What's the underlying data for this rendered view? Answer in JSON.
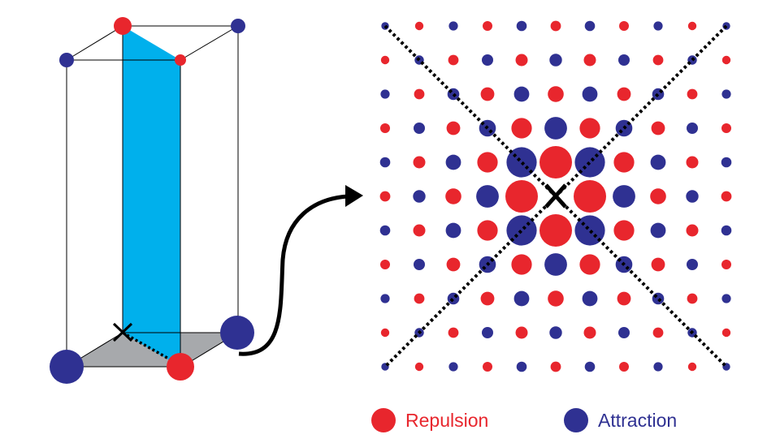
{
  "colors": {
    "repulsion": "#e8262d",
    "attraction": "#2f3192",
    "plane": "#00b0ec",
    "base": "#a7a9ac",
    "ink": "#000000"
  },
  "legend": {
    "repulsion_label": "Repulsion",
    "attraction_label": "Attraction"
  },
  "lattice_pattern": {
    "grid_size": 11,
    "center_index": 5,
    "parity_rule": "cells with even (row+col) are attraction; odd are repulsion",
    "center_marker": "x-mark"
  }
}
